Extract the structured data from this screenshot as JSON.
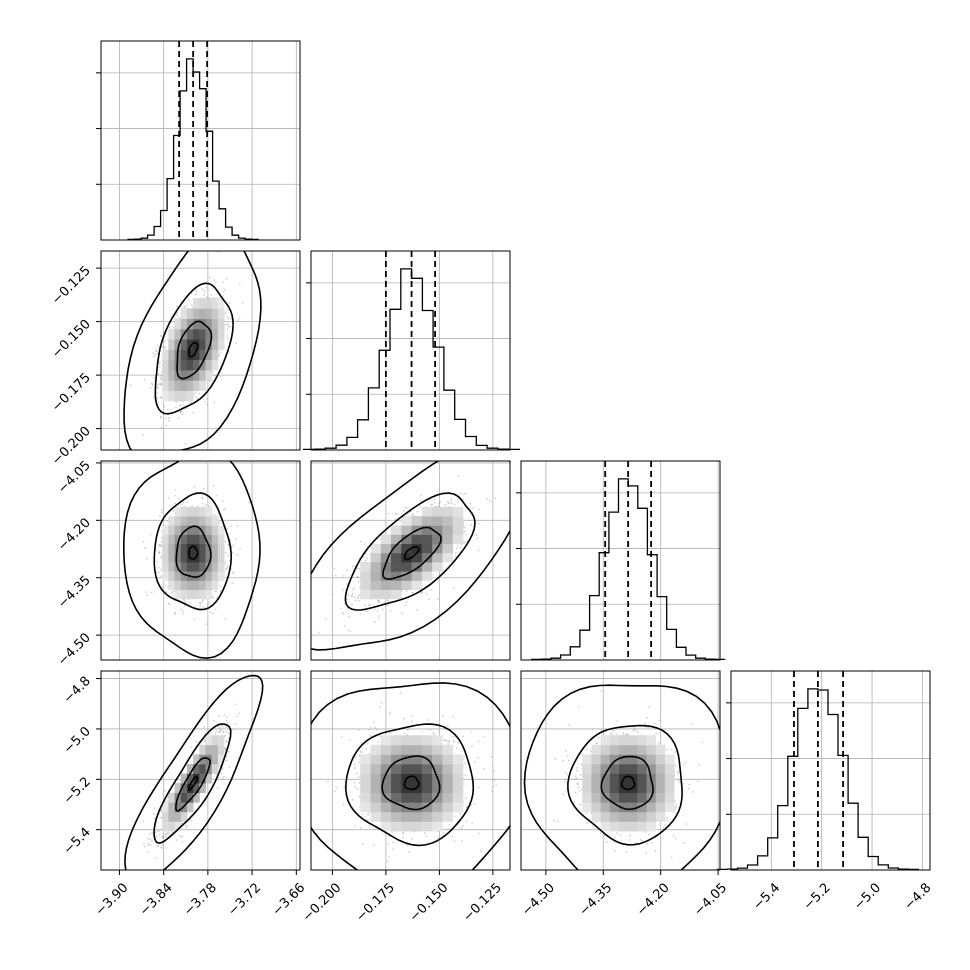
{
  "chart_data": {
    "type": "corner",
    "params": [
      {
        "ticks": [
          -3.9,
          -3.84,
          -3.78,
          -3.72,
          -3.66
        ],
        "tick_labels": [
          "−3.90",
          "−3.84",
          "−3.78",
          "−3.72",
          "−3.66"
        ],
        "range": [
          -3.925,
          -3.655
        ],
        "median": -3.8,
        "q16": -3.819,
        "q84": -3.781,
        "std": 0.021
      },
      {
        "ticks": [
          -0.2,
          -0.175,
          -0.15,
          -0.125
        ],
        "tick_labels": [
          "−0.200",
          "−0.175",
          "−0.150",
          "−0.125"
        ],
        "range": [
          -0.21,
          -0.117
        ],
        "median": -0.163,
        "q16": -0.175,
        "q84": -0.152,
        "std": 0.012
      },
      {
        "ticks": [
          -4.5,
          -4.35,
          -4.2,
          -4.05
        ],
        "tick_labels": [
          "−4.50",
          "−4.35",
          "−4.20",
          "−4.05"
        ],
        "range": [
          -4.565,
          -4.045
        ],
        "median": -4.285,
        "q16": -4.345,
        "q84": -4.225,
        "std": 0.06
      },
      {
        "ticks": [
          -5.4,
          -5.2,
          -5.0,
          -4.8
        ],
        "tick_labels": [
          "−5.4",
          "−5.2",
          "−5.0",
          "−4.8"
        ],
        "range": [
          -5.56,
          -4.77
        ],
        "median": -5.215,
        "q16": -5.31,
        "q84": -5.115,
        "std": 0.095
      }
    ],
    "correlations": [
      {
        "pair": [
          1,
          0
        ],
        "rho": 0.45
      },
      {
        "pair": [
          2,
          0
        ],
        "rho": 0.0
      },
      {
        "pair": [
          2,
          1
        ],
        "rho": 0.65
      },
      {
        "pair": [
          3,
          0
        ],
        "rho": 0.85
      },
      {
        "pair": [
          3,
          1
        ],
        "rho": 0.0
      },
      {
        "pair": [
          3,
          2
        ],
        "rho": 0.0
      }
    ],
    "quantiles": [
      0.16,
      0.5,
      0.84
    ],
    "contour_sigma_levels": [
      0.5,
      1.0,
      1.5,
      2.0
    ],
    "grid": true,
    "colors": {
      "line": "#000000",
      "points": "#9a9a9a",
      "grid": "#b0b0b0"
    }
  }
}
